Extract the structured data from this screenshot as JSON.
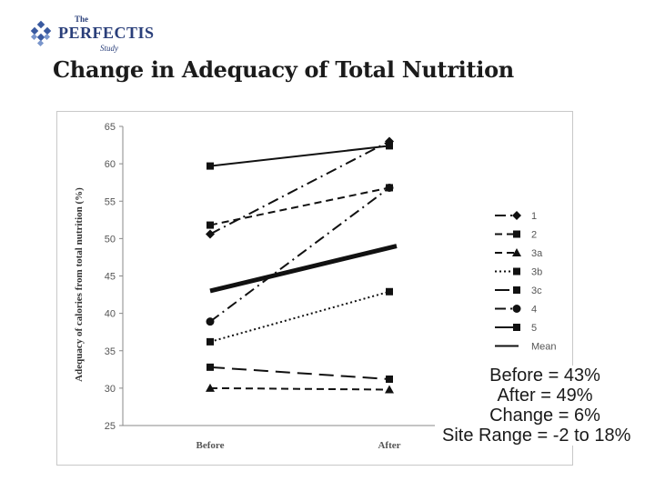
{
  "logo": {
    "the": "The",
    "name": "PERFECTIS",
    "study": "Study"
  },
  "title": "Change in Adequacy of Total Nutrition",
  "chart_data": {
    "type": "line",
    "categories": [
      "Before",
      "After"
    ],
    "ylabel": "Adequacy of calories from total nutrition (%)",
    "xlabel": "",
    "ylim": [
      25,
      65
    ],
    "yticks": [
      25,
      30,
      35,
      40,
      45,
      50,
      55,
      60,
      65
    ],
    "series": [
      {
        "name": "1",
        "values": [
          50.6,
          63.0
        ],
        "marker": "diamond",
        "dash": "dashdot"
      },
      {
        "name": "2",
        "values": [
          51.8,
          56.8
        ],
        "marker": "square",
        "dash": "dash"
      },
      {
        "name": "3a",
        "values": [
          30.0,
          29.8
        ],
        "marker": "triangle",
        "dash": "dash"
      },
      {
        "name": "3b",
        "values": [
          36.2,
          42.9
        ],
        "marker": "square",
        "dash": "dot"
      },
      {
        "name": "3c",
        "values": [
          32.8,
          31.2
        ],
        "marker": "square",
        "dash": "longdash"
      },
      {
        "name": "4",
        "values": [
          38.9,
          56.8
        ],
        "marker": "circle",
        "dash": "dashdot"
      },
      {
        "name": "5",
        "values": [
          59.7,
          62.4
        ],
        "marker": "square",
        "dash": "solid"
      },
      {
        "name": "Mean",
        "values": [
          43.0,
          49.0
        ],
        "marker": "none",
        "dash": "bold"
      }
    ]
  },
  "summary": {
    "before": "Before = 43%",
    "after": "After = 49%",
    "change": "Change = 6%",
    "range": "Site Range = -2 to 18%"
  }
}
